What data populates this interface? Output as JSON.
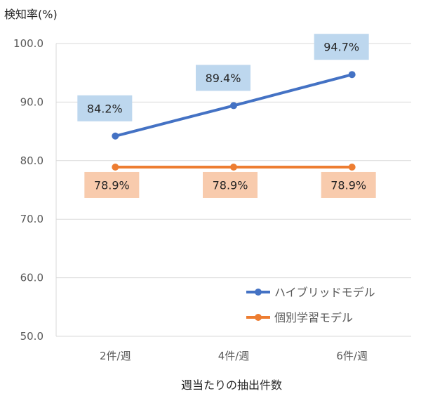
{
  "chart_data": {
    "type": "line",
    "ylabel": "検知率(%)",
    "xlabel": "週当たりの抽出件数",
    "categories": [
      "2件/週",
      "4件/週",
      "6件/週"
    ],
    "ylim": [
      50.0,
      100.0
    ],
    "yticks": [
      "50.0",
      "60.0",
      "70.0",
      "80.0",
      "90.0",
      "100.0"
    ],
    "grid": true,
    "legend_position": "bottom-right",
    "series": [
      {
        "name": "ハイブリッドモデル",
        "values": [
          84.2,
          89.4,
          94.7
        ],
        "labels": [
          "84.2%",
          "89.4%",
          "94.7%"
        ],
        "color": "#4472C4",
        "label_bg": "#BDD7EE"
      },
      {
        "name": "個別学習モデル",
        "values": [
          78.9,
          78.9,
          78.9
        ],
        "labels": [
          "78.9%",
          "78.9%",
          "78.9%"
        ],
        "color": "#ED7D31",
        "label_bg": "#F8CBAD"
      }
    ]
  }
}
